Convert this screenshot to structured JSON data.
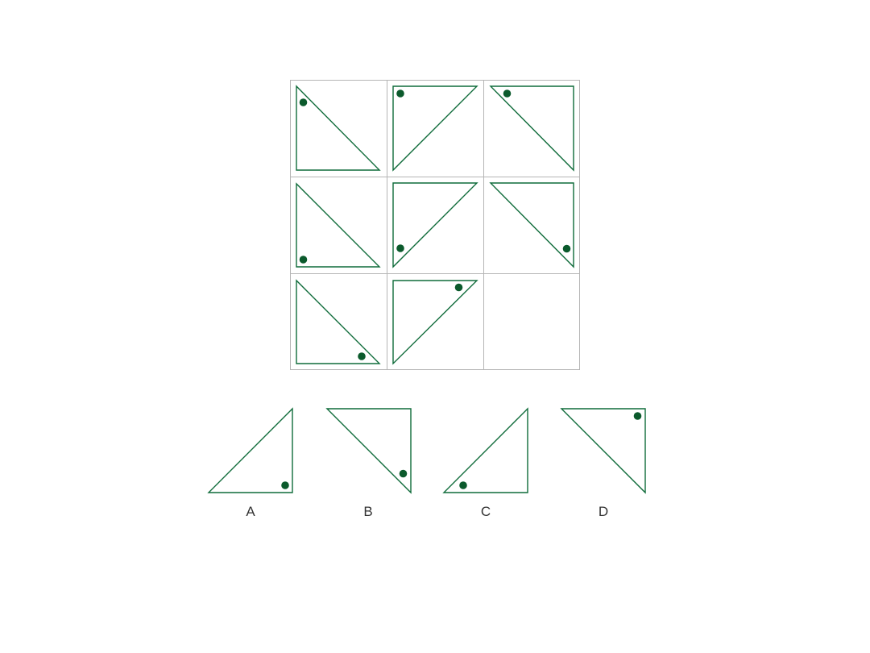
{
  "colors": {
    "shape": "#0f6b3a",
    "dot": "#0b5a2c",
    "grid": "#b5b5b5",
    "label": "#333333"
  },
  "puzzle": {
    "rows": 3,
    "cols": 3,
    "cells": [
      {
        "triangle": "right-angle-bottom-left",
        "dot": "top"
      },
      {
        "triangle": "right-angle-top-left",
        "dot": "top-left"
      },
      {
        "triangle": "right-angle-top-right",
        "dot": "top-left"
      },
      {
        "triangle": "right-angle-bottom-left",
        "dot": "bottom-left"
      },
      {
        "triangle": "right-angle-top-left",
        "dot": "bottom"
      },
      {
        "triangle": "right-angle-top-right",
        "dot": "bottom-right"
      },
      {
        "triangle": "right-angle-bottom-left",
        "dot": "bottom-right"
      },
      {
        "triangle": "right-angle-top-left",
        "dot": "top-right"
      },
      {
        "triangle": "missing",
        "dot": "none"
      }
    ]
  },
  "options": [
    {
      "label": "A",
      "triangle": "right-angle-bottom-right",
      "dot": "bottom-right"
    },
    {
      "label": "B",
      "triangle": "right-angle-top-right",
      "dot": "bottom-right"
    },
    {
      "label": "C",
      "triangle": "right-angle-bottom-right",
      "dot": "bottom-left"
    },
    {
      "label": "D",
      "triangle": "right-angle-top-right",
      "dot": "top-right"
    }
  ]
}
